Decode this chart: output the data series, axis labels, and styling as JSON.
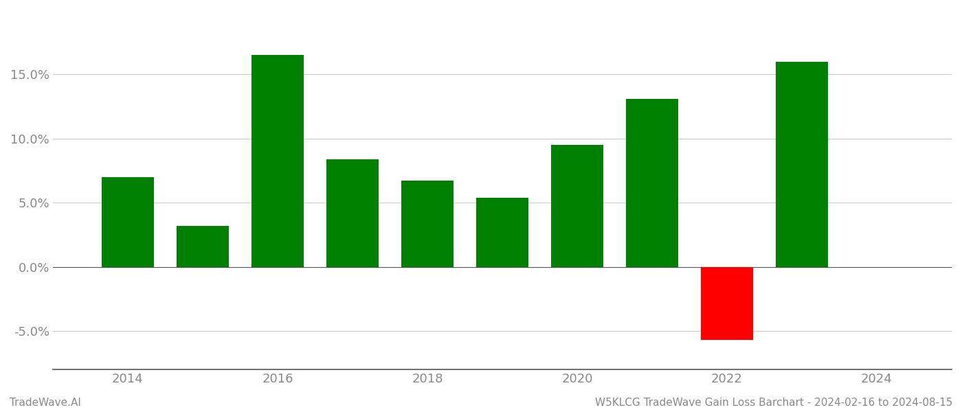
{
  "years": [
    2014,
    2015,
    2016,
    2017,
    2018,
    2019,
    2020,
    2021,
    2022,
    2023
  ],
  "values": [
    0.07,
    0.032,
    0.165,
    0.084,
    0.067,
    0.054,
    0.095,
    0.131,
    -0.057,
    0.16
  ],
  "bar_colors": [
    "#008000",
    "#008000",
    "#008000",
    "#008000",
    "#008000",
    "#008000",
    "#008000",
    "#008000",
    "#ff0000",
    "#008000"
  ],
  "title": "W5KLCG TradeWave Gain Loss Barchart - 2024-02-16 to 2024-08-15",
  "footer_left": "TradeWave.AI",
  "ylim": [
    -0.08,
    0.2
  ],
  "yticks": [
    -0.05,
    0.0,
    0.05,
    0.1,
    0.15
  ],
  "xlim": [
    2013.0,
    2025.0
  ],
  "xticks": [
    2014,
    2016,
    2018,
    2020,
    2022,
    2024
  ],
  "background_color": "#ffffff",
  "grid_color": "#cccccc",
  "bar_width": 0.7,
  "tick_label_color": "#888888",
  "footer_color": "#888888",
  "tick_fontsize": 13,
  "footer_fontsize": 11
}
